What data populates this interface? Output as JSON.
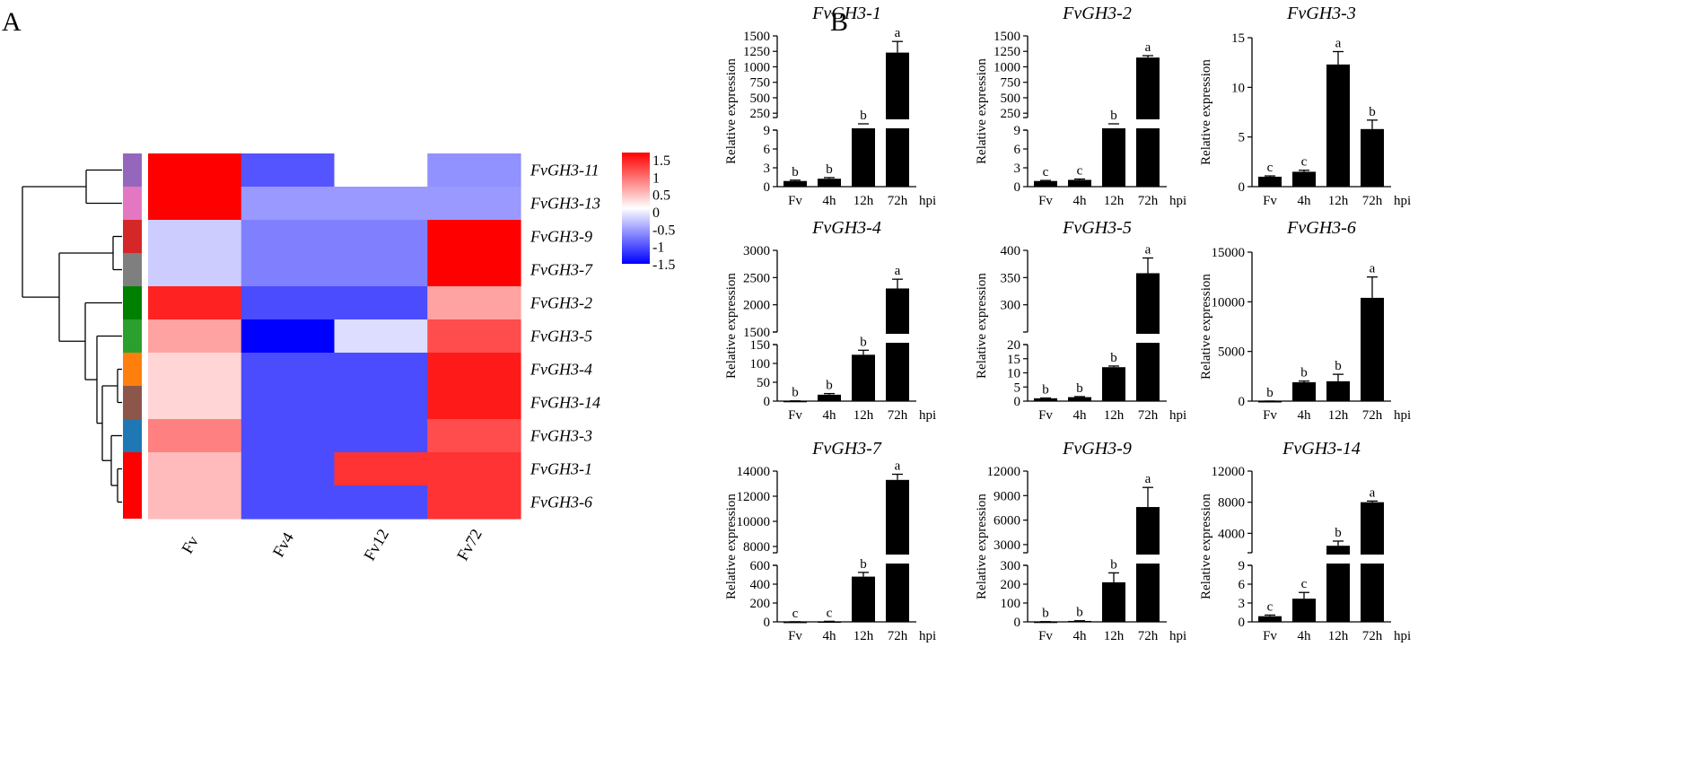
{
  "panels": {
    "a": "A",
    "b": "B"
  },
  "chart_data": [
    {
      "type": "heatmap",
      "columns": [
        "Fv",
        "Fv4",
        "Fv12",
        "Fv72"
      ],
      "rows": [
        "FvGH3-11",
        "FvGH3-13",
        "FvGH3-9",
        "FvGH3-7",
        "FvGH3-2",
        "FvGH3-5",
        "FvGH3-4",
        "FvGH3-14",
        "FvGH3-3",
        "FvGH3-1",
        "FvGH3-6"
      ],
      "values": [
        [
          1.5,
          -1.0,
          0.0,
          -0.65
        ],
        [
          1.5,
          -0.6,
          -0.6,
          -0.6
        ],
        [
          -0.3,
          -0.75,
          -0.75,
          1.5
        ],
        [
          -0.3,
          -0.75,
          -0.75,
          1.5
        ],
        [
          1.3,
          -1.05,
          -1.05,
          0.55
        ],
        [
          0.55,
          -1.5,
          -0.2,
          1.05
        ],
        [
          0.25,
          -1.05,
          -1.05,
          1.35
        ],
        [
          0.25,
          -1.05,
          -1.05,
          1.35
        ],
        [
          0.75,
          -1.05,
          -1.05,
          1.05
        ],
        [
          0.4,
          -1.05,
          1.2,
          1.2
        ],
        [
          0.4,
          -1.05,
          -1.05,
          1.2
        ]
      ],
      "group_colors": [
        "#9467bd",
        "#e377c2",
        "#d62728",
        "#7f7f7f",
        "#008000",
        "#2ca02c",
        "#ff7f0e",
        "#8c564b",
        "#1f77b4",
        "#ff0000",
        "#ff0000"
      ],
      "colorbar_ticks": [
        "1.5",
        "1",
        "0.5",
        "0",
        "-0.5",
        "-1",
        "-1.5"
      ],
      "colorbar_range": [
        -1.5,
        1.5
      ],
      "dendrogram": true
    },
    {
      "type": "bar",
      "title": "FvGH3-1",
      "categories": [
        "Fv",
        "4h",
        "12h",
        "72h"
      ],
      "xunit": "hpi",
      "ylabel": "Relative expression",
      "values": [
        1,
        1.4,
        70,
        1230
      ],
      "errors": [
        0.15,
        0.2,
        5,
        180
      ],
      "letters": [
        "b",
        "b",
        "b",
        "a"
      ],
      "broken_axis": {
        "lower": [
          0,
          10
        ],
        "upper": [
          180,
          1500
        ]
      },
      "lower_ticks": [
        "0",
        "3",
        "6",
        "9"
      ],
      "upper_ticks": [
        "250",
        "500",
        "750",
        "1000",
        "1250",
        "1500"
      ]
    },
    {
      "type": "bar",
      "title": "FvGH3-2",
      "categories": [
        "Fv",
        "4h",
        "12h",
        "72h"
      ],
      "xunit": "hpi",
      "ylabel": "Relative expression",
      "values": [
        1,
        1.2,
        65,
        1150
      ],
      "errors": [
        0.1,
        0.15,
        3,
        30
      ],
      "letters": [
        "c",
        "c",
        "b",
        "a"
      ],
      "broken_axis": {
        "lower": [
          0,
          10
        ],
        "upper": [
          180,
          1500
        ]
      },
      "lower_ticks": [
        "0",
        "3",
        "6",
        "9"
      ],
      "upper_ticks": [
        "250",
        "500",
        "750",
        "1000",
        "1250",
        "1500"
      ]
    },
    {
      "type": "bar",
      "title": "FvGH3-3",
      "categories": [
        "Fv",
        "4h",
        "12h",
        "72h"
      ],
      "xunit": "hpi",
      "ylabel": "Relative expression",
      "values": [
        1,
        1.5,
        12.3,
        5.8
      ],
      "errors": [
        0.08,
        0.15,
        1.3,
        0.9
      ],
      "letters": [
        "c",
        "c",
        "a",
        "b"
      ],
      "ylim": [
        0,
        15
      ],
      "ticks": [
        "0",
        "5",
        "10",
        "15"
      ]
    },
    {
      "type": "bar",
      "title": "FvGH3-4",
      "categories": [
        "Fv",
        "4h",
        "12h",
        "72h"
      ],
      "xunit": "hpi",
      "ylabel": "Relative expression",
      "values": [
        0.5,
        17,
        123,
        2300
      ],
      "errors": [
        0.1,
        3,
        12,
        170
      ],
      "letters": [
        "b",
        "b",
        "b",
        "a"
      ],
      "broken_axis": {
        "lower": [
          0,
          150
        ],
        "upper": [
          1500,
          3000
        ]
      },
      "lower_ticks": [
        "0",
        "50",
        "100",
        "150"
      ],
      "upper_ticks": [
        "1500",
        "2000",
        "2500",
        "3000"
      ]
    },
    {
      "type": "bar",
      "title": "FvGH3-5",
      "categories": [
        "Fv",
        "4h",
        "12h",
        "72h"
      ],
      "xunit": "hpi",
      "ylabel": "Relative expression",
      "values": [
        1,
        1.4,
        12,
        358
      ],
      "errors": [
        0.1,
        0.2,
        0.4,
        28
      ],
      "letters": [
        "b",
        "b",
        "b",
        "a"
      ],
      "broken_axis": {
        "lower": [
          0,
          20
        ],
        "upper": [
          250,
          400
        ]
      },
      "lower_ticks": [
        "0",
        "5",
        "10",
        "15",
        "20"
      ],
      "upper_ticks": [
        "300",
        "350",
        "400"
      ]
    },
    {
      "type": "bar",
      "title": "FvGH3-6",
      "categories": [
        "Fv",
        "4h",
        "12h",
        "72h"
      ],
      "xunit": "hpi",
      "ylabel": "Relative expression",
      "values": [
        1,
        1900,
        2000,
        10400
      ],
      "errors": [
        0.5,
        120,
        700,
        2100
      ],
      "letters": [
        "b",
        "b",
        "b",
        "a"
      ],
      "ylim": [
        0,
        15000
      ],
      "ticks": [
        "0",
        "5000",
        "10000",
        "15000"
      ]
    },
    {
      "type": "bar",
      "title": "FvGH3-7",
      "categories": [
        "Fv",
        "4h",
        "12h",
        "72h"
      ],
      "xunit": "hpi",
      "ylabel": "Relative expression",
      "values": [
        1,
        5,
        480,
        13300
      ],
      "errors": [
        0.2,
        1,
        45,
        450
      ],
      "letters": [
        "c",
        "c",
        "b",
        "a"
      ],
      "broken_axis": {
        "lower": [
          0,
          600
        ],
        "upper": [
          7500,
          14000
        ]
      },
      "lower_ticks": [
        "0",
        "200",
        "400",
        "600"
      ],
      "upper_ticks": [
        "8000",
        "10000",
        "12000",
        "14000"
      ]
    },
    {
      "type": "bar",
      "title": "FvGH3-9",
      "categories": [
        "Fv",
        "4h",
        "12h",
        "72h"
      ],
      "xunit": "hpi",
      "ylabel": "Relative expression",
      "values": [
        1,
        5,
        210,
        7600
      ],
      "errors": [
        0.2,
        1,
        50,
        2400
      ],
      "letters": [
        "b",
        "b",
        "b",
        "a"
      ],
      "broken_axis": {
        "lower": [
          0,
          300
        ],
        "upper": [
          2000,
          12000
        ]
      },
      "lower_ticks": [
        "0",
        "100",
        "200",
        "300"
      ],
      "upper_ticks": [
        "3000",
        "6000",
        "9000",
        "12000"
      ]
    },
    {
      "type": "bar",
      "title": "FvGH3-14",
      "categories": [
        "Fv",
        "4h",
        "12h",
        "72h"
      ],
      "xunit": "hpi",
      "ylabel": "Relative expression",
      "values": [
        1,
        4.1,
        2400,
        8000
      ],
      "errors": [
        0.2,
        1.1,
        600,
        150
      ],
      "letters": [
        "c",
        "c",
        "b",
        "a"
      ],
      "broken_axis": {
        "lower": [
          0,
          10
        ],
        "upper": [
          1500,
          12000
        ]
      },
      "lower_ticks": [
        "0",
        "3",
        "6",
        "9"
      ],
      "upper_ticks": [
        "4000",
        "8000",
        "12000"
      ]
    }
  ]
}
